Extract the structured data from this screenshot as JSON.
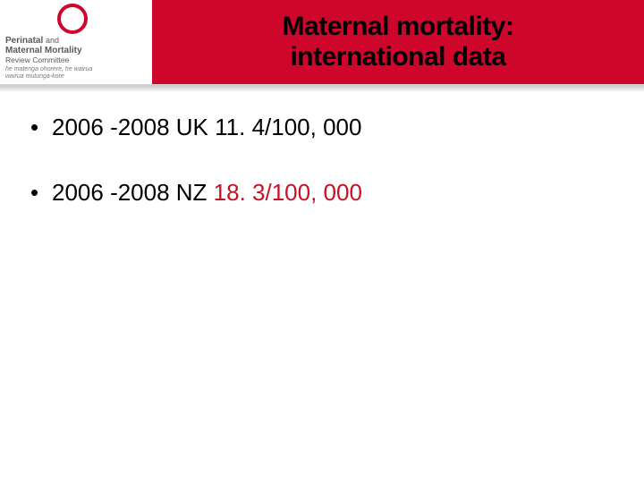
{
  "colors": {
    "header_bg": "#cf062c",
    "title_color": "#000000",
    "logo_accent": "#cf062c",
    "body_text": "#000000",
    "highlight": "#c81026",
    "shadow_border": "#bcbcbc"
  },
  "logo": {
    "line1_a": "Perinatal",
    "line1_b": "and",
    "line2": "Maternal Mortality",
    "line3": "Review Committee",
    "tagline1": "he matenga ohorere, he wairua",
    "tagline2": "wairua mutunga-kore"
  },
  "title": {
    "line1": "Maternal mortality:",
    "line2": "international data"
  },
  "bullets": [
    {
      "prefix": "2006 -2008 UK ",
      "value": "11. 4/100, 000",
      "value_highlighted": false
    },
    {
      "prefix": "2006 -2008 NZ ",
      "value": "18. 3/100, 000",
      "value_highlighted": true
    }
  ]
}
